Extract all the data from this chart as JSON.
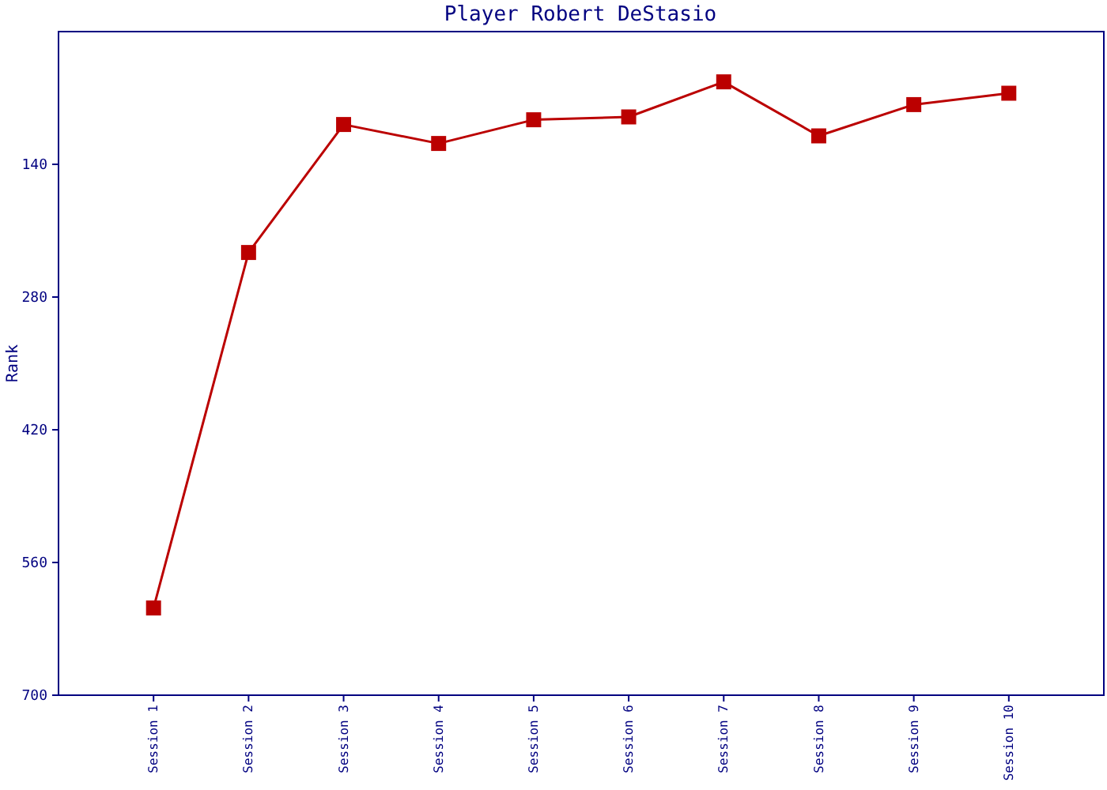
{
  "chart_data": {
    "type": "line",
    "title": "Player Robert DeStasio",
    "ylabel": "Rank",
    "categories": [
      "Session 1",
      "Session 2",
      "Session 3",
      "Session 4",
      "Session 5",
      "Session 6",
      "Session 7",
      "Session 8",
      "Session 9",
      "Session 10"
    ],
    "series": [
      {
        "color": "#bb0000",
        "values": [
          608,
          233,
          98,
          118,
          93,
          90,
          53,
          110,
          77,
          65
        ]
      }
    ],
    "ylim": [
      700,
      0
    ],
    "yticks": [
      140,
      280,
      420,
      560,
      700
    ],
    "marker": "square",
    "line_style": "solid"
  }
}
